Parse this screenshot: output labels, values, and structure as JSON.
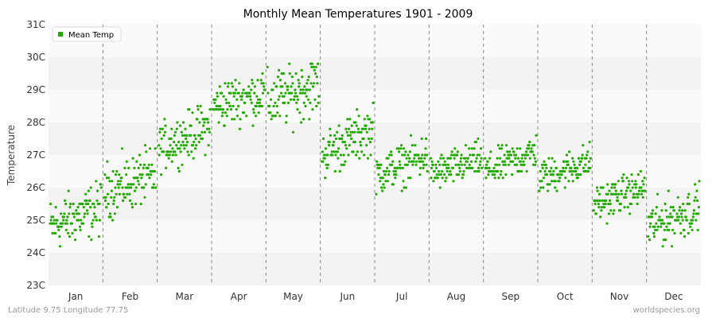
{
  "chart_data": {
    "type": "scatter",
    "title": "Monthly Mean Temperatures 1901 - 2009",
    "ylabel": "Temperature",
    "xlabel": "",
    "ylim": [
      23,
      31
    ],
    "y_ticks": [
      "23C",
      "24C",
      "25C",
      "26C",
      "27C",
      "28C",
      "29C",
      "30C",
      "31C"
    ],
    "months": [
      "Jan",
      "Feb",
      "Mar",
      "Apr",
      "May",
      "Jun",
      "Jul",
      "Aug",
      "Sep",
      "Oct",
      "Nov",
      "Dec"
    ],
    "legend": {
      "label": "Mean Temp",
      "placement": "top-left"
    },
    "grid": true,
    "series": [
      {
        "name": "Mean Temp",
        "color": "#22aa00",
        "points_per_month": 109,
        "start_mean": [
          24.8,
          25.9,
          27.2,
          28.5,
          28.6,
          27.0,
          26.4,
          26.4,
          26.5,
          26.3,
          25.5,
          24.8
        ],
        "end_mean": [
          25.4,
          26.4,
          27.9,
          28.9,
          29.2,
          27.8,
          27.0,
          26.9,
          27.1,
          26.8,
          26.0,
          25.4
        ],
        "spread": [
          0.9,
          0.9,
          0.8,
          0.8,
          1.0,
          0.8,
          0.7,
          0.6,
          0.6,
          0.6,
          0.6,
          0.8
        ],
        "min": [
          23.8,
          24.7,
          26.3,
          27.5,
          27.1,
          26.1,
          25.7,
          25.8,
          25.8,
          25.5,
          24.9,
          23.8
        ],
        "max": [
          26.8,
          27.3,
          28.6,
          30.5,
          29.8,
          28.6,
          28.0,
          27.6,
          27.8,
          27.5,
          26.5,
          26.3
        ]
      }
    ]
  },
  "footer": {
    "left": "Latitude 9.75 Longitude 77.75",
    "right": "worldspecies.org"
  }
}
